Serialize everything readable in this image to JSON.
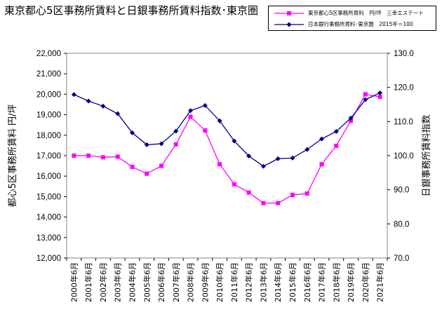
{
  "chart_data": {
    "type": "line",
    "title": "東京都心5区事務所賃料と日銀事務所賃料指数･東京圏",
    "categories": [
      "2000年6月",
      "2001年6月",
      "2002年6月",
      "2003年6月",
      "2004年6月",
      "2005年6月",
      "2006年6月",
      "2007年6月",
      "2008年6月",
      "2009年6月",
      "2010年6月",
      "2011年6月",
      "2012年6月",
      "2013年6月",
      "2014年6月",
      "2015年6月",
      "2016年6月",
      "2017年6月",
      "2018年6月",
      "2019年6月",
      "2020年6月",
      "2021年6月"
    ],
    "series": [
      {
        "name": "東京都心5区事務所賃料　円/坪　三幸エステート",
        "axis": "left",
        "color": "#ff00ff",
        "marker": "square",
        "values": [
          17000,
          17000,
          16920,
          16950,
          16450,
          16120,
          16500,
          17550,
          18900,
          18230,
          16580,
          15600,
          15200,
          14680,
          14680,
          15080,
          15150,
          16580,
          17480,
          18700,
          20000,
          19870
        ]
      },
      {
        "name": "日本銀行事務所賃料･東京圏　2015年＝100",
        "axis": "right",
        "color": "#000080",
        "marker": "diamond",
        "values": [
          117.9,
          116.0,
          114.5,
          112.3,
          106.7,
          103.2,
          103.5,
          107.2,
          113.2,
          114.7,
          110.2,
          104.3,
          99.9,
          96.9,
          99.1,
          99.3,
          101.8,
          104.9,
          107.1,
          111.0,
          116.4,
          118.4
        ]
      }
    ],
    "ylabel": "都心5区事務所賃料 円/坪",
    "y2label": "日銀事務所賃料指数",
    "ylim": [
      12000,
      22000
    ],
    "y2lim": [
      70,
      130
    ],
    "yticks": [
      "12,000",
      "13,000",
      "14,000",
      "15,000",
      "16,000",
      "17,000",
      "18,000",
      "19,000",
      "20,000",
      "21,000",
      "22,000"
    ],
    "y2ticks": [
      "70.0",
      "80.0",
      "90.0",
      "100.0",
      "110.0",
      "120.0",
      "130.0"
    ],
    "grid": false,
    "legend": "top-right"
  }
}
